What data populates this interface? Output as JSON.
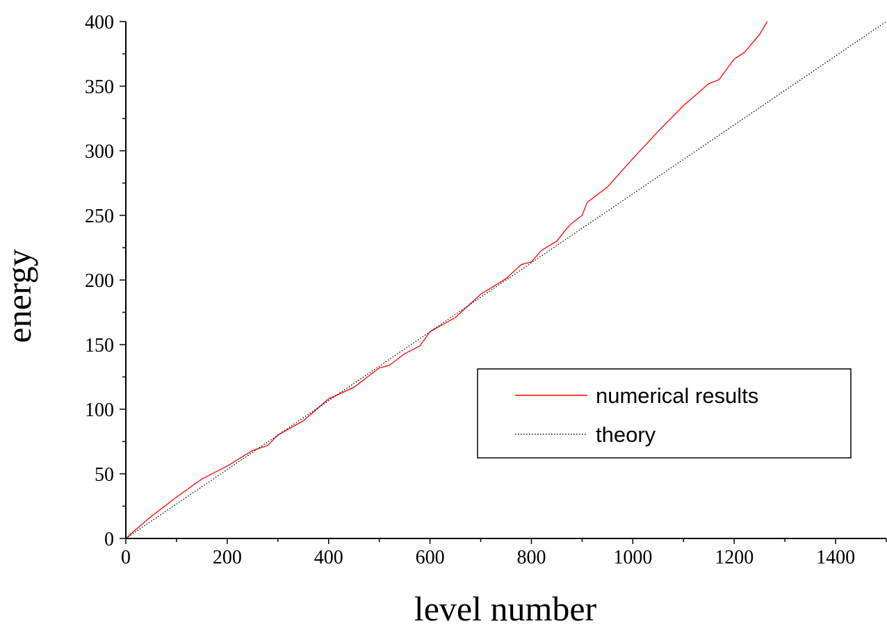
{
  "chart_data": {
    "type": "line",
    "title": "",
    "xlabel": "level number",
    "ylabel": "energy",
    "xlim": [
      0,
      1500
    ],
    "ylim": [
      0,
      400
    ],
    "xticks": [
      "0",
      "200",
      "400",
      "600",
      "800",
      "1000",
      "1200",
      "1400"
    ],
    "yticks": [
      "0",
      "50",
      "100",
      "150",
      "200",
      "250",
      "300",
      "350",
      "400"
    ],
    "grid": false,
    "legend": "center-right",
    "series": [
      {
        "name": "numerical results",
        "color": "#ff0000",
        "style": "solid",
        "x": [
          0,
          20,
          50,
          100,
          150,
          200,
          250,
          280,
          300,
          350,
          400,
          450,
          500,
          520,
          550,
          580,
          600,
          650,
          700,
          750,
          780,
          800,
          820,
          850,
          870,
          880,
          900,
          910,
          920,
          950,
          1000,
          1050,
          1100,
          1150,
          1170,
          1200,
          1220,
          1250,
          1265
        ],
        "y": [
          0,
          7,
          17,
          32,
          46,
          56,
          68,
          72,
          80,
          91,
          108,
          117,
          132,
          134,
          143,
          149,
          160,
          171,
          189,
          201,
          212,
          214,
          223,
          230,
          240,
          244,
          250,
          260,
          263,
          272,
          294,
          315,
          335,
          352,
          355,
          371,
          376,
          390,
          400
        ]
      },
      {
        "name": "theory",
        "color": "#000000",
        "style": "dotted",
        "x": [
          0,
          1500
        ],
        "y": [
          0,
          400
        ]
      }
    ]
  }
}
